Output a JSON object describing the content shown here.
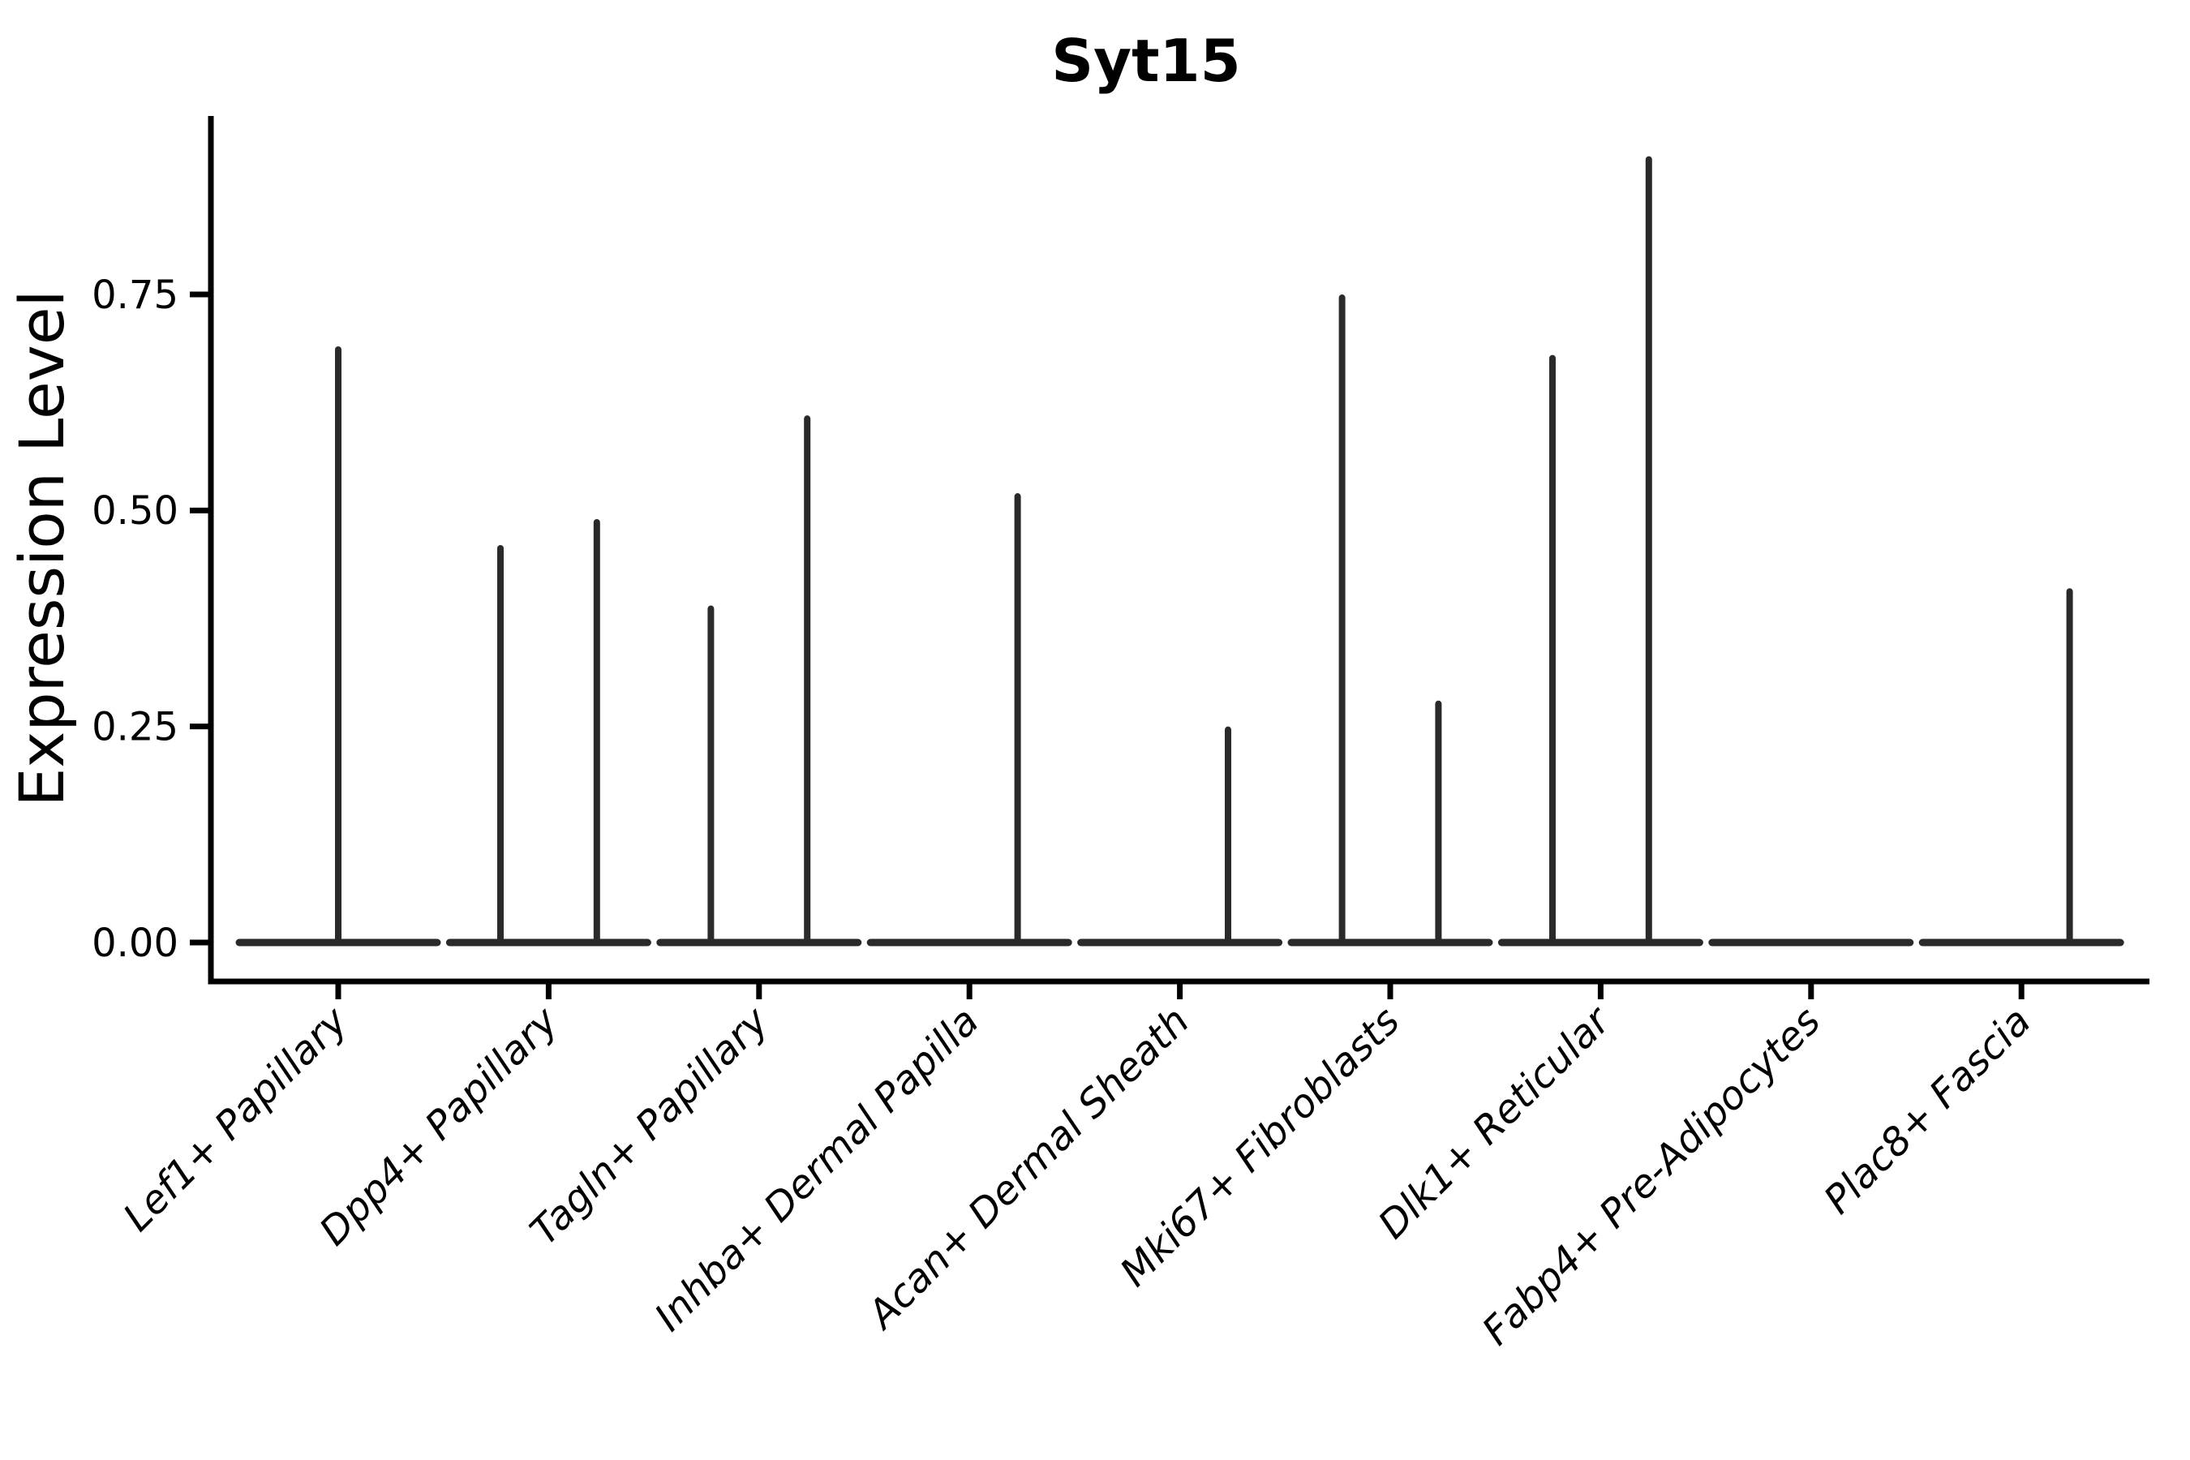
{
  "figure": {
    "background": "#ffffff",
    "ink_color": "#000000",
    "violin_color": "#2a2a2a"
  },
  "chart_data": {
    "type": "violin",
    "title": "Syt15",
    "xlabel": "",
    "ylabel": "Expression Level",
    "grid": false,
    "legend": "none",
    "ytick_labels": [
      "0.00",
      "0.25",
      "0.50",
      "0.75"
    ],
    "ytick_values": [
      0,
      0.25,
      0.5,
      0.75
    ],
    "ylim": [
      -0.045,
      0.956
    ],
    "categories": [
      "Lef1+ Papillary",
      "Dpp4+ Papillary",
      "Tagln+ Papillary",
      "Inhba+ Dermal Papilla",
      "Acan+ Dermal Sheath",
      "Mki67+ Fibroblasts",
      "Dlk1+ Reticular",
      "Fabp4+ Pre-Adipocytes",
      "Plac8+ Fascia"
    ],
    "violins": [
      {
        "category": "Lef1+ Papillary",
        "spikes": [
          {
            "side": "center",
            "max_expression": 0.69
          }
        ]
      },
      {
        "category": "Dpp4+ Papillary",
        "spikes": [
          {
            "side": "left",
            "max_expression": 0.46
          },
          {
            "side": "right",
            "max_expression": 0.49
          }
        ]
      },
      {
        "category": "Tagln+ Papillary",
        "spikes": [
          {
            "side": "left",
            "max_expression": 0.39
          },
          {
            "side": "right",
            "max_expression": 0.61
          }
        ]
      },
      {
        "category": "Inhba+ Dermal Papilla",
        "spikes": [
          {
            "side": "right",
            "max_expression": 0.52
          }
        ]
      },
      {
        "category": "Acan+ Dermal Sheath",
        "spikes": [
          {
            "side": "right",
            "max_expression": 0.25
          }
        ]
      },
      {
        "category": "Mki67+ Fibroblasts",
        "spikes": [
          {
            "side": "left",
            "max_expression": 0.75
          },
          {
            "side": "right",
            "max_expression": 0.28
          }
        ]
      },
      {
        "category": "Dlk1+ Reticular",
        "spikes": [
          {
            "side": "left",
            "max_expression": 0.68
          },
          {
            "side": "right",
            "max_expression": 0.91
          }
        ]
      },
      {
        "category": "Fabp4+ Pre-Adipocytes",
        "spikes": []
      },
      {
        "category": "Plac8+ Fascia",
        "spikes": [
          {
            "side": "right",
            "max_expression": 0.41
          }
        ]
      }
    ]
  }
}
